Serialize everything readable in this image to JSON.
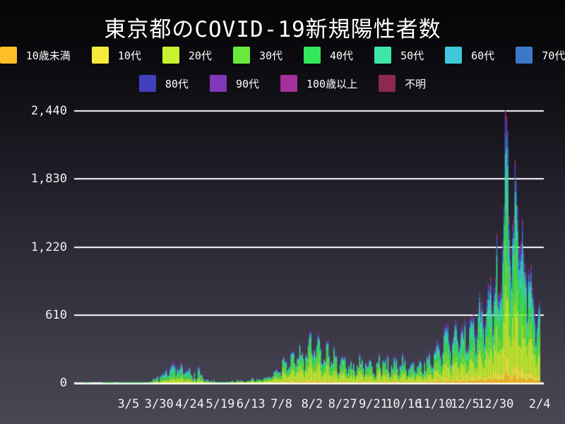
{
  "title": "東京都のCOVID-19新規陽性者数",
  "chart_data": {
    "type": "stacked-bar",
    "title": "東京都のCOVID-19新規陽性者数",
    "ylabel": "",
    "xlabel": "",
    "y_axis": {
      "tick_labels": [
        "0",
        "610",
        "1,220",
        "1,830",
        "2,440"
      ],
      "tick_values": [
        0,
        610,
        1220,
        1830,
        2440
      ],
      "max": 2440,
      "grid": true,
      "grid_color": "#ffffff"
    },
    "x_axis": {
      "start_date": "2020-01-24",
      "end_date": "2021-02-04",
      "ticks": [
        {
          "label": "3/5",
          "day": 41
        },
        {
          "label": "3/30",
          "day": 66
        },
        {
          "label": "4/24",
          "day": 91
        },
        {
          "label": "5/19",
          "day": 116
        },
        {
          "label": "6/13",
          "day": 141
        },
        {
          "label": "7/8",
          "day": 166
        },
        {
          "label": "8/2",
          "day": 191
        },
        {
          "label": "8/27",
          "day": 216
        },
        {
          "label": "9/21",
          "day": 241
        },
        {
          "label": "10/16",
          "day": 266
        },
        {
          "label": "11/10",
          "day": 291
        },
        {
          "label": "12/5",
          "day": 316
        },
        {
          "label": "12/30",
          "day": 341
        },
        {
          "label": "2/4",
          "day": 377
        }
      ]
    },
    "legend_position": "top",
    "legend_rows": [
      8,
      4
    ],
    "groups": [
      {
        "label": "10歳未満",
        "color": "#FDBE27"
      },
      {
        "label": "10代",
        "color": "#F6EB3D"
      },
      {
        "label": "20代",
        "color": "#C7F22D"
      },
      {
        "label": "30代",
        "color": "#69E93C"
      },
      {
        "label": "40代",
        "color": "#33E65A"
      },
      {
        "label": "50代",
        "color": "#3DE6A6"
      },
      {
        "label": "60代",
        "color": "#3FC8DA"
      },
      {
        "label": "70代",
        "color": "#3D78C7"
      },
      {
        "label": "80代",
        "color": "#4340BE"
      },
      {
        "label": "90代",
        "color": "#8138B8"
      },
      {
        "label": "100歳以上",
        "color": "#A3309B"
      },
      {
        "label": "不明",
        "color": "#8B2A4C"
      }
    ],
    "daily_totals": [
      1,
      0,
      0,
      0,
      1,
      1,
      0,
      1,
      1,
      0,
      1,
      0,
      0,
      0,
      0,
      0,
      0,
      0,
      0,
      0,
      1,
      2,
      8,
      5,
      3,
      8,
      3,
      3,
      3,
      2,
      0,
      0,
      1,
      2,
      3,
      2,
      4,
      1,
      2,
      3,
      2,
      4,
      5,
      6,
      3,
      2,
      5,
      6,
      7,
      4,
      8,
      6,
      3,
      5,
      9,
      7,
      11,
      8,
      3,
      16,
      17,
      41,
      47,
      40,
      63,
      68,
      13,
      78,
      66,
      97,
      89,
      118,
      143,
      83,
      80,
      144,
      181,
      189,
      197,
      166,
      91,
      159,
      127,
      149,
      206,
      181,
      107,
      102,
      123,
      132,
      134,
      161,
      103,
      72,
      39,
      112,
      47,
      46,
      165,
      160,
      93,
      87,
      57,
      38,
      25,
      39,
      36,
      22,
      15,
      28,
      10,
      30,
      9,
      14,
      5,
      10,
      5,
      5,
      11,
      3,
      2,
      14,
      8,
      10,
      11,
      15,
      22,
      14,
      5,
      13,
      34,
      12,
      28,
      20,
      26,
      14,
      13,
      12,
      18,
      22,
      25,
      24,
      47,
      48,
      27,
      16,
      41,
      35,
      39,
      35,
      29,
      31,
      55,
      48,
      54,
      57,
      60,
      58,
      54,
      67,
      107,
      124,
      131,
      111,
      102,
      106,
      75,
      224,
      243,
      206,
      206,
      119,
      143,
      165,
      286,
      293,
      290,
      188,
      168,
      237,
      238,
      366,
      260,
      295,
      239,
      131,
      266,
      250,
      367,
      463,
      472,
      292,
      258,
      309,
      263,
      360,
      462,
      429,
      331,
      197,
      188,
      222,
      206,
      389,
      385,
      260,
      161,
      207,
      186,
      339,
      258,
      256,
      95,
      96,
      182,
      236,
      250,
      226,
      247,
      148,
      100,
      170,
      141,
      211,
      136,
      181,
      116,
      77,
      170,
      149,
      276,
      187,
      226,
      146,
      80,
      191,
      163,
      171,
      220,
      218,
      162,
      98,
      88,
      59,
      195,
      195,
      270,
      144,
      78,
      212,
      194,
      235,
      142,
      263,
      107,
      66,
      177,
      142,
      248,
      203,
      249,
      146,
      78,
      166,
      177,
      284,
      184,
      235,
      132,
      78,
      139,
      150,
      185,
      186,
      203,
      124,
      102,
      158,
      171,
      221,
      204,
      116,
      87,
      209,
      122,
      269,
      242,
      294,
      189,
      156,
      157,
      293,
      317,
      393,
      374,
      352,
      255,
      180,
      298,
      493,
      534,
      522,
      539,
      391,
      314,
      186,
      401,
      481,
      570,
      561,
      418,
      311,
      372,
      500,
      533,
      449,
      584,
      327,
      299,
      352,
      572,
      602,
      595,
      621,
      480,
      305,
      460,
      678,
      822,
      664,
      736,
      556,
      392,
      563,
      748,
      888,
      884,
      949,
      708,
      481,
      856,
      944,
      1337,
      783,
      814,
      816,
      884,
      1278,
      1591,
      2447,
      2392,
      2268,
      1494,
      1219,
      970,
      1433,
      1502,
      2001,
      1809,
      1592,
      1204,
      1240,
      1274,
      1471,
      1175,
      1070,
      986,
      618,
      1026,
      973,
      1064,
      868,
      769,
      633,
      393,
      556,
      676,
      734
    ],
    "age_distribution_periods": [
      {
        "through_day": 120,
        "fractions": [
          0.01,
          0.03,
          0.17,
          0.15,
          0.16,
          0.15,
          0.1,
          0.09,
          0.06,
          0.03,
          0.002,
          0.048
        ]
      },
      {
        "through_day": 250,
        "fractions": [
          0.02,
          0.05,
          0.31,
          0.22,
          0.14,
          0.1,
          0.06,
          0.04,
          0.03,
          0.01,
          0.002,
          0.018
        ]
      },
      {
        "through_day": 378,
        "fractions": [
          0.03,
          0.06,
          0.24,
          0.18,
          0.15,
          0.12,
          0.08,
          0.06,
          0.04,
          0.02,
          0.003,
          0.017
        ]
      }
    ],
    "peak_value": 2447,
    "peak_date": "1/7"
  }
}
